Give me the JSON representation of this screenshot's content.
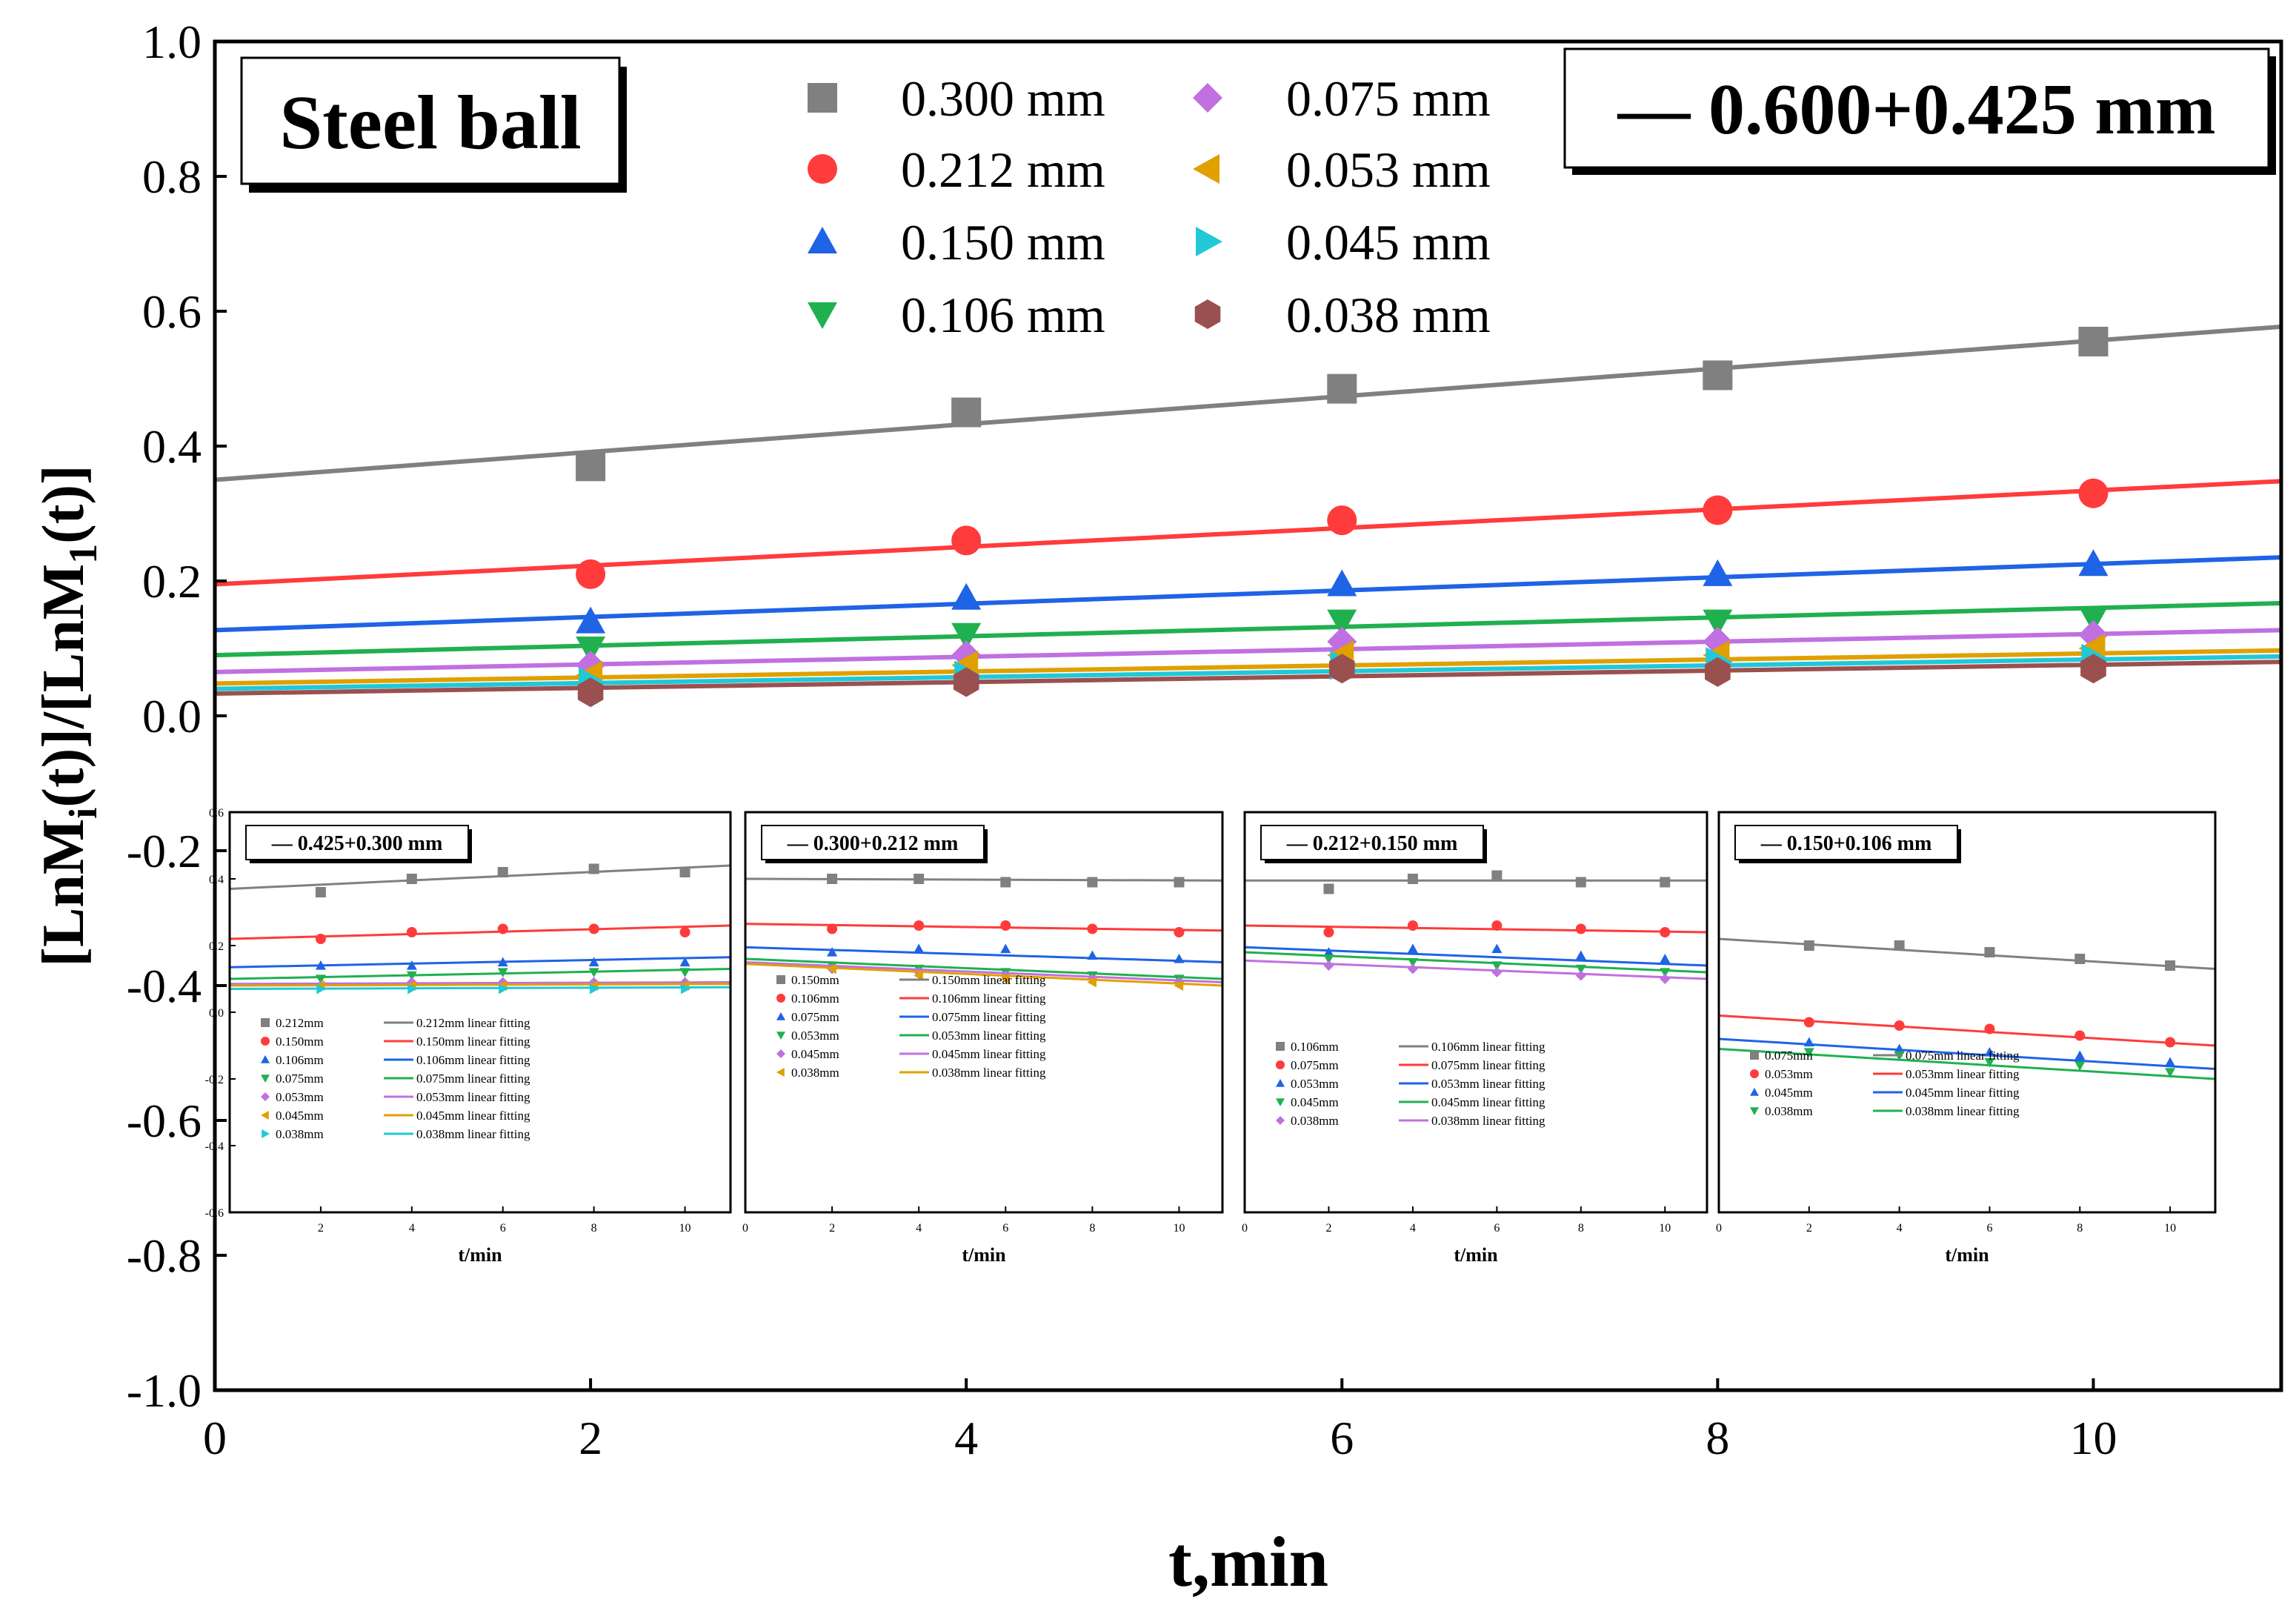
{
  "chart_data": {
    "type": "scatter",
    "title": "",
    "xlabel": "t,min",
    "ylabel_parts": [
      "[LnM",
      "i",
      "(t)]/[LnM",
      "1",
      "(t)]"
    ],
    "xlim": [
      0,
      11
    ],
    "ylim": [
      -1.0,
      1.0
    ],
    "x_ticks": [
      0,
      2,
      4,
      6,
      8,
      10
    ],
    "x_tick_labels": [
      "0",
      "2",
      "4",
      "6",
      "8",
      "10"
    ],
    "y_ticks": [
      -1.0,
      -0.8,
      -0.6,
      -0.4,
      -0.2,
      0.0,
      0.2,
      0.4,
      0.6,
      0.8,
      1.0
    ],
    "y_tick_labels": [
      "-1.0",
      "-0.8",
      "-0.6",
      "-0.4",
      "-0.2",
      "0.0",
      "0.2",
      "0.4",
      "0.6",
      "0.8",
      "1.0"
    ],
    "material_label": "Steel ball",
    "size_fraction_label": "— 0.600+0.425 mm",
    "x": [
      2,
      4,
      6,
      8,
      10
    ],
    "series": [
      {
        "name": "0.300 mm",
        "marker": "square",
        "color": "#808080",
        "values": [
          0.37,
          0.45,
          0.485,
          0.505,
          0.555
        ],
        "fit": [
          0.35,
          0.577
        ]
      },
      {
        "name": "0.212 mm",
        "marker": "circle",
        "color": "#ff3b3b",
        "values": [
          0.21,
          0.26,
          0.29,
          0.305,
          0.33
        ],
        "fit": [
          0.195,
          0.348
        ]
      },
      {
        "name": "0.150 mm",
        "marker": "triangle-up",
        "color": "#1f63e6",
        "values": [
          0.14,
          0.175,
          0.195,
          0.21,
          0.225
        ],
        "fit": [
          0.127,
          0.235
        ]
      },
      {
        "name": "0.106 mm",
        "marker": "triangle-down",
        "color": "#20b050",
        "values": [
          0.1,
          0.12,
          0.14,
          0.14,
          0.145
        ],
        "fit": [
          0.09,
          0.167
        ]
      },
      {
        "name": "0.075 mm",
        "marker": "diamond",
        "color": "#c070e0",
        "values": [
          0.075,
          0.09,
          0.11,
          0.11,
          0.12
        ],
        "fit": [
          0.065,
          0.127
        ]
      },
      {
        "name": "0.053 mm",
        "marker": "triangle-left",
        "color": "#e0a000",
        "values": [
          0.06,
          0.075,
          0.09,
          0.09,
          0.1
        ],
        "fit": [
          0.048,
          0.097
        ]
      },
      {
        "name": "0.045 mm",
        "marker": "triangle-right",
        "color": "#20c8d8",
        "values": [
          0.05,
          0.06,
          0.075,
          0.08,
          0.085
        ],
        "fit": [
          0.04,
          0.088
        ]
      },
      {
        "name": "0.038 mm",
        "marker": "hexagon",
        "color": "#9b5050",
        "values": [
          0.035,
          0.05,
          0.07,
          0.065,
          0.07
        ],
        "fit": [
          0.033,
          0.08
        ]
      }
    ],
    "insets": [
      {
        "label": "— 0.425+0.300 mm",
        "xlabel": "t/min",
        "xlim": [
          0,
          11
        ],
        "ylim": [
          -0.6,
          0.6
        ],
        "x_ticks": [
          2,
          4,
          6,
          8,
          10
        ],
        "x_tick_labels": [
          "2",
          "4",
          "6",
          "8",
          "10"
        ],
        "y_ticks": [
          -0.6,
          -0.4,
          -0.2,
          0.0,
          0.2,
          0.4,
          0.6
        ],
        "y_tick_labels": [
          "-0.6",
          "-0.4",
          "-0.2",
          "0.0",
          "0.2",
          "0.4",
          "0.6"
        ],
        "x": [
          2,
          4,
          6,
          8,
          10
        ],
        "series": [
          {
            "name": "0.212mm",
            "fit_label": "0.212mm linear fitting",
            "marker": "square",
            "color": "#808080",
            "values": [
              0.36,
              0.4,
              0.42,
              0.43,
              0.42
            ],
            "fit": [
              0.37,
              0.44
            ]
          },
          {
            "name": "0.150mm",
            "fit_label": "0.150mm linear fitting",
            "marker": "circle",
            "color": "#ff3b3b",
            "values": [
              0.22,
              0.24,
              0.25,
              0.25,
              0.24
            ],
            "fit": [
              0.22,
              0.26
            ]
          },
          {
            "name": "0.106mm",
            "fit_label": "0.106mm linear fitting",
            "marker": "triangle-up",
            "color": "#1f63e6",
            "values": [
              0.14,
              0.14,
              0.15,
              0.15,
              0.15
            ],
            "fit": [
              0.135,
              0.165
            ]
          },
          {
            "name": "0.075mm",
            "fit_label": "0.075mm linear fitting",
            "marker": "triangle-down",
            "color": "#20b050",
            "values": [
              0.1,
              0.11,
              0.12,
              0.12,
              0.12
            ],
            "fit": [
              0.1,
              0.13
            ]
          },
          {
            "name": "0.053mm",
            "fit_label": "0.053mm linear fitting",
            "marker": "diamond",
            "color": "#c070e0",
            "values": [
              0.08,
              0.09,
              0.09,
              0.09,
              0.09
            ],
            "fit": [
              0.085,
              0.09
            ]
          },
          {
            "name": "0.045mm",
            "fit_label": "0.045mm linear fitting",
            "marker": "triangle-left",
            "color": "#e0a000",
            "values": [
              0.08,
              0.08,
              0.08,
              0.08,
              0.08
            ],
            "fit": [
              0.08,
              0.085
            ]
          },
          {
            "name": "0.038mm",
            "fit_label": "0.038mm linear fitting",
            "marker": "triangle-right",
            "color": "#20c8d8",
            "values": [
              0.07,
              0.07,
              0.07,
              0.07,
              0.07
            ],
            "fit": [
              0.07,
              0.075
            ]
          }
        ]
      },
      {
        "label": "— 0.300+0.212 mm",
        "xlabel": "t/min",
        "xlim": [
          0,
          11
        ],
        "ylim": [
          -0.6,
          0.6
        ],
        "x_ticks": [
          0,
          2,
          4,
          6,
          8,
          10
        ],
        "x_tick_labels": [
          "0",
          "2",
          "4",
          "6",
          "8",
          "10"
        ],
        "y_ticks": [],
        "y_tick_labels": [],
        "x": [
          2,
          4,
          6,
          8,
          10
        ],
        "series": [
          {
            "name": "0.150mm",
            "fit_label": "0.150mm linear fitting",
            "marker": "square",
            "color": "#808080",
            "values": [
              0.4,
              0.4,
              0.39,
              0.39,
              0.39
            ],
            "fit": [
              0.4,
              0.395
            ]
          },
          {
            "name": "0.106mm",
            "fit_label": "0.106mm linear fitting",
            "marker": "circle",
            "color": "#ff3b3b",
            "values": [
              0.25,
              0.26,
              0.26,
              0.25,
              0.24
            ],
            "fit": [
              0.265,
              0.245
            ]
          },
          {
            "name": "0.075mm",
            "fit_label": "0.075mm linear fitting",
            "marker": "triangle-up",
            "color": "#1f63e6",
            "values": [
              0.18,
              0.19,
              0.19,
              0.17,
              0.16
            ],
            "fit": [
              0.195,
              0.15
            ]
          },
          {
            "name": "0.053mm",
            "fit_label": "0.053mm linear fitting",
            "marker": "triangle-down",
            "color": "#20b050",
            "values": [
              0.14,
              0.13,
              0.12,
              0.11,
              0.1
            ],
            "fit": [
              0.16,
              0.1
            ]
          },
          {
            "name": "0.045mm",
            "fit_label": "0.045mm linear fitting",
            "marker": "diamond",
            "color": "#c070e0",
            "values": [
              0.13,
              0.12,
              0.11,
              0.1,
              0.09
            ],
            "fit": [
              0.15,
              0.09
            ]
          },
          {
            "name": "0.038mm",
            "fit_label": "0.038mm linear fitting",
            "marker": "triangle-left",
            "color": "#e0a000",
            "values": [
              0.13,
              0.11,
              0.1,
              0.09,
              0.08
            ],
            "fit": [
              0.145,
              0.08
            ]
          }
        ]
      },
      {
        "label": "— 0.212+0.150 mm",
        "xlabel": "t/min",
        "xlim": [
          0,
          11
        ],
        "ylim": [
          -0.6,
          0.6
        ],
        "x_ticks": [
          0,
          2,
          4,
          6,
          8,
          10
        ],
        "x_tick_labels": [
          "0",
          "2",
          "4",
          "6",
          "8",
          "10"
        ],
        "y_ticks": [],
        "y_tick_labels": [],
        "x": [
          2,
          4,
          6,
          8,
          10
        ],
        "series": [
          {
            "name": "0.106mm",
            "fit_label": "0.106mm linear fitting",
            "marker": "square",
            "color": "#808080",
            "values": [
              0.37,
              0.4,
              0.41,
              0.39,
              0.39
            ],
            "fit": [
              0.395,
              0.395
            ]
          },
          {
            "name": "0.075mm",
            "fit_label": "0.075mm linear fitting",
            "marker": "circle",
            "color": "#ff3b3b",
            "values": [
              0.24,
              0.26,
              0.26,
              0.25,
              0.24
            ],
            "fit": [
              0.26,
              0.24
            ]
          },
          {
            "name": "0.053mm",
            "fit_label": "0.053mm linear fitting",
            "marker": "triangle-up",
            "color": "#1f63e6",
            "values": [
              0.18,
              0.19,
              0.19,
              0.17,
              0.16
            ],
            "fit": [
              0.195,
              0.14
            ]
          },
          {
            "name": "0.045mm",
            "fit_label": "0.045mm linear fitting",
            "marker": "triangle-down",
            "color": "#20b050",
            "values": [
              0.16,
              0.15,
              0.14,
              0.13,
              0.12
            ],
            "fit": [
              0.18,
              0.12
            ]
          },
          {
            "name": "0.038mm",
            "fit_label": "0.038mm linear fitting",
            "marker": "diamond",
            "color": "#c070e0",
            "values": [
              0.14,
              0.13,
              0.12,
              0.11,
              0.1
            ],
            "fit": [
              0.155,
              0.1
            ]
          }
        ]
      },
      {
        "label": "— 0.150+0.106 mm",
        "xlabel": "t/min",
        "xlim": [
          0,
          11
        ],
        "ylim": [
          -0.6,
          0.6
        ],
        "x_ticks": [
          0,
          2,
          4,
          6,
          8,
          10
        ],
        "x_tick_labels": [
          "0",
          "2",
          "4",
          "6",
          "8",
          "10"
        ],
        "y_ticks": [],
        "y_tick_labels": [],
        "x": [
          2,
          4,
          6,
          8,
          10
        ],
        "series": [
          {
            "name": "0.075mm",
            "fit_label": "0.075mm linear fitting",
            "marker": "square",
            "color": "#808080",
            "values": [
              0.2,
              0.2,
              0.18,
              0.16,
              0.14
            ],
            "fit": [
              0.22,
              0.13
            ]
          },
          {
            "name": "0.053mm",
            "fit_label": "0.053mm linear fitting",
            "marker": "circle",
            "color": "#ff3b3b",
            "values": [
              -0.03,
              -0.04,
              -0.05,
              -0.07,
              -0.09
            ],
            "fit": [
              -0.01,
              -0.1
            ]
          },
          {
            "name": "0.045mm",
            "fit_label": "0.045mm linear fitting",
            "marker": "triangle-up",
            "color": "#1f63e6",
            "values": [
              -0.09,
              -0.11,
              -0.12,
              -0.13,
              -0.15
            ],
            "fit": [
              -0.08,
              -0.17
            ]
          },
          {
            "name": "0.038mm",
            "fit_label": "0.038mm linear fitting",
            "marker": "triangle-down",
            "color": "#20b050",
            "values": [
              -0.12,
              -0.13,
              -0.15,
              -0.16,
              -0.18
            ],
            "fit": [
              -0.11,
              -0.2
            ]
          }
        ]
      }
    ]
  }
}
